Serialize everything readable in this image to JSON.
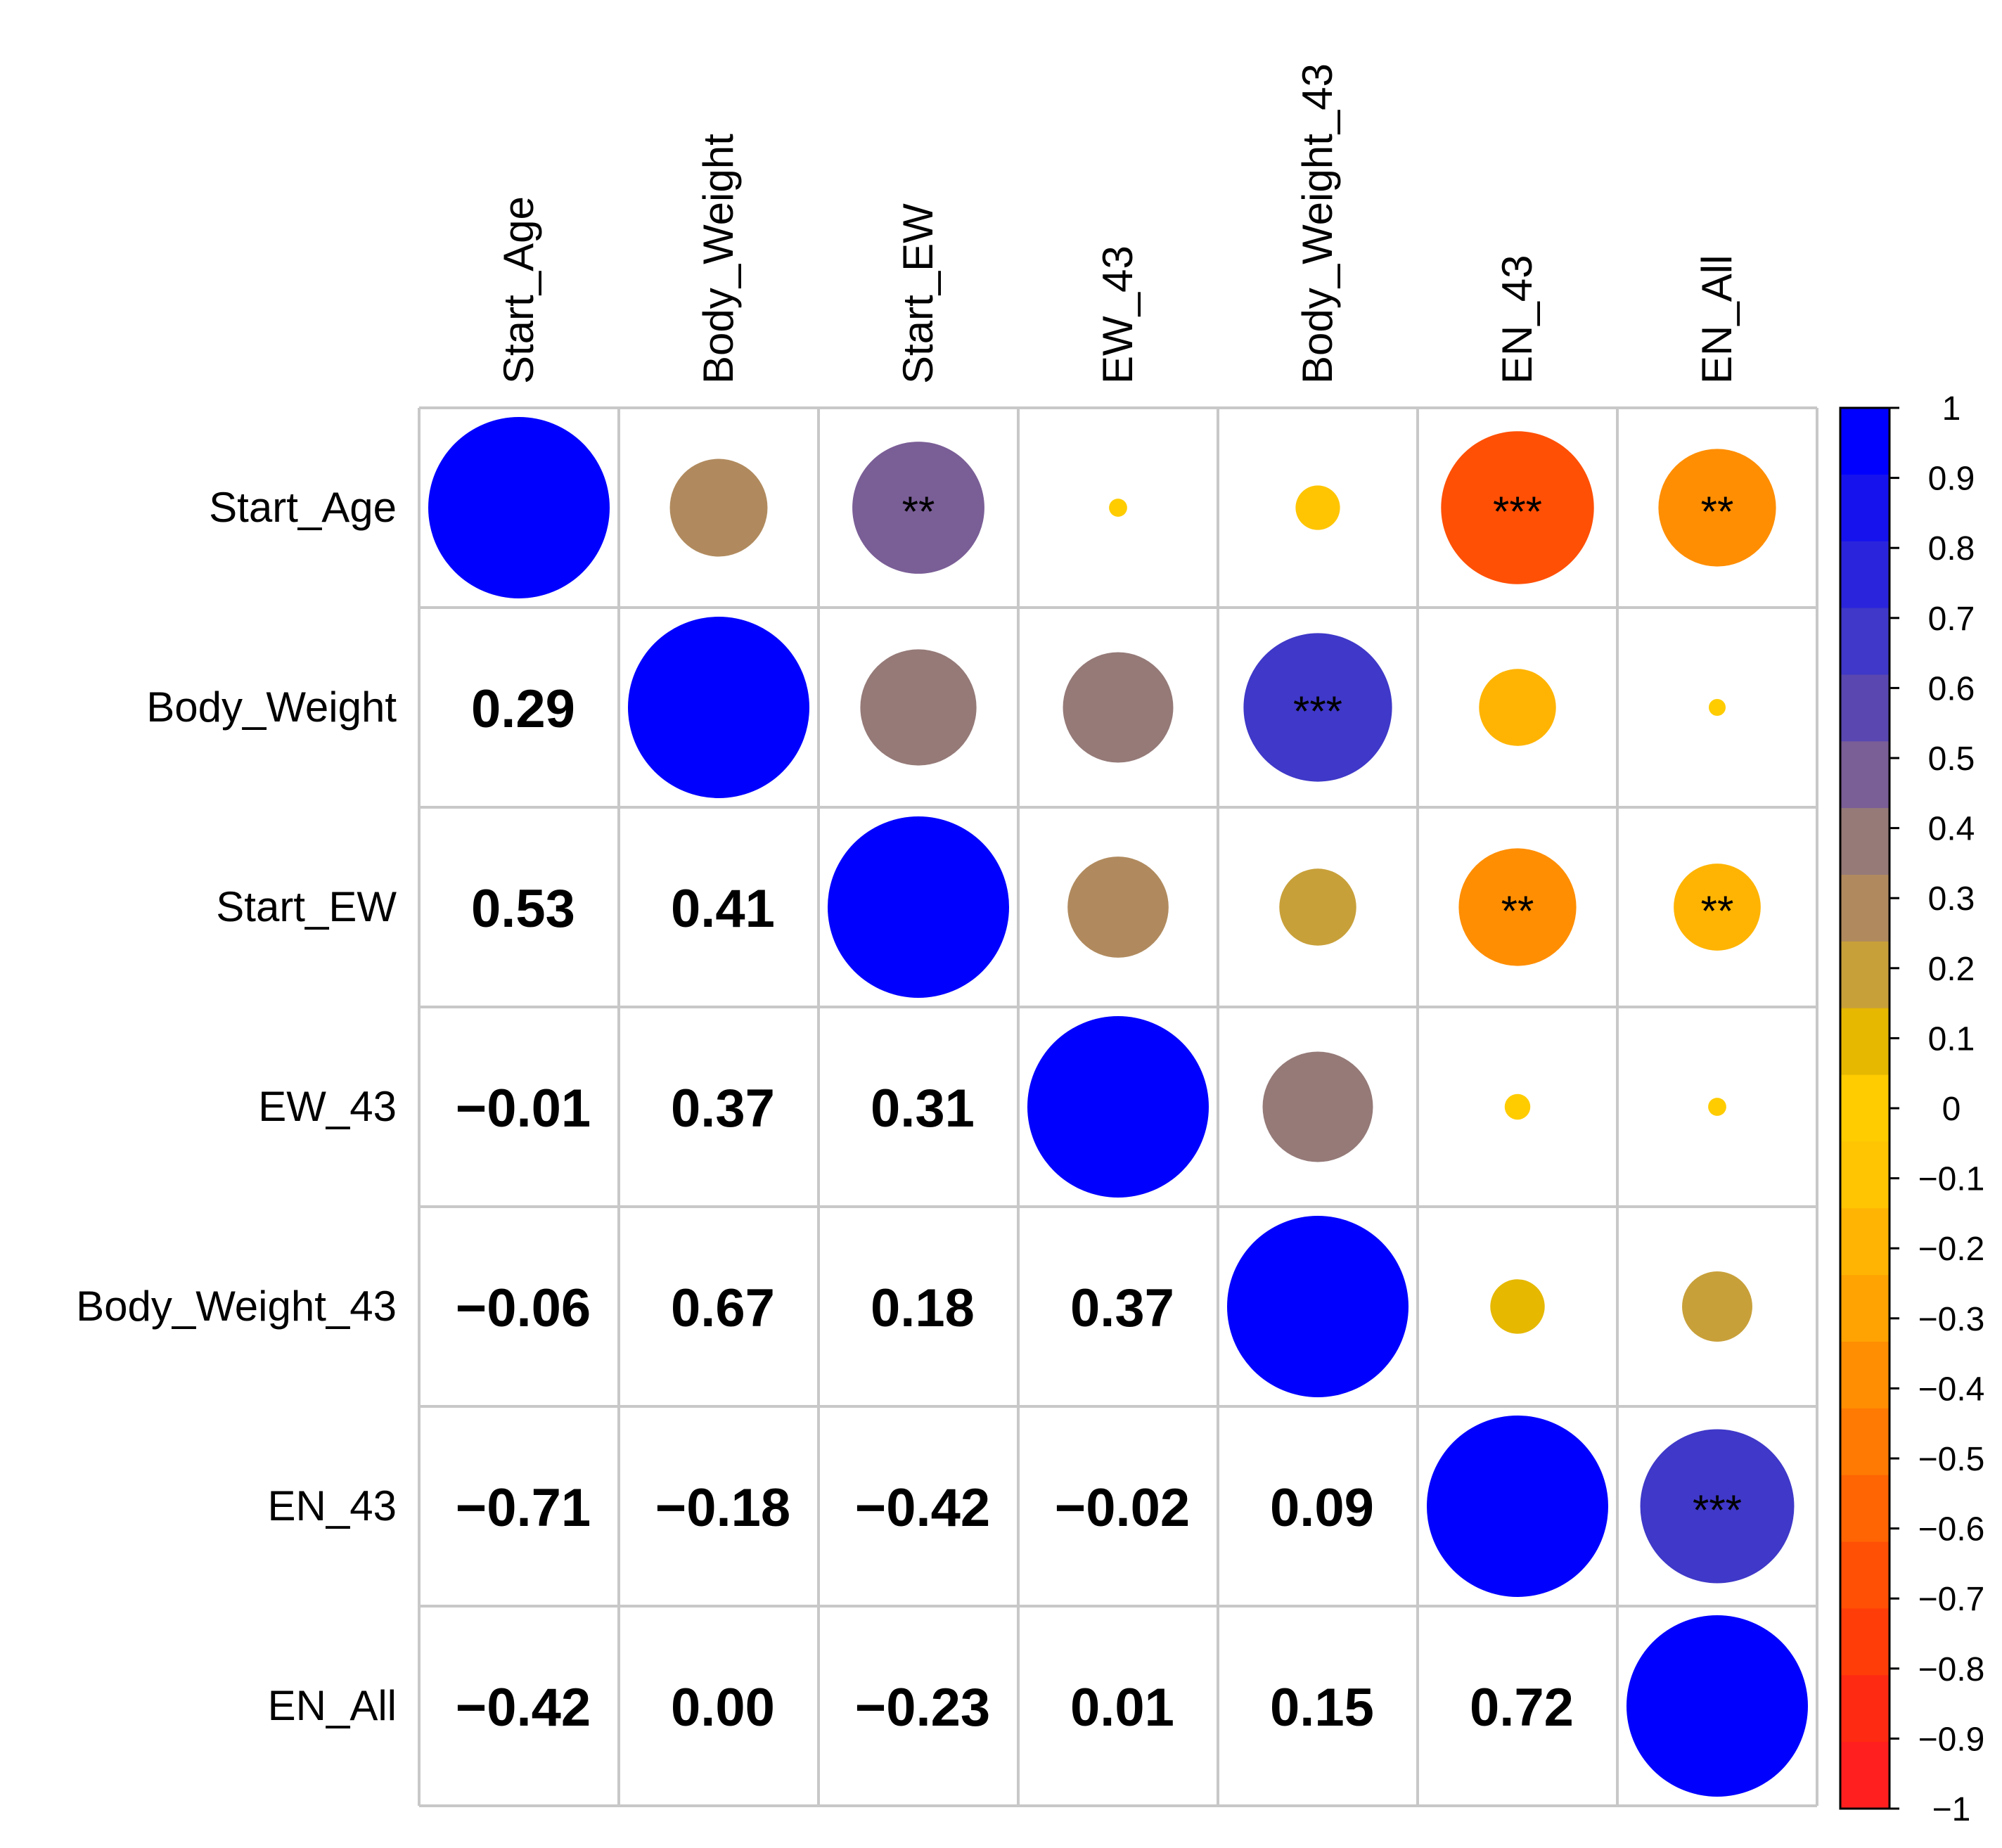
{
  "chart_data": {
    "type": "heatmap",
    "variables": [
      "Start_Age",
      "Body_Weight",
      "Start_EW",
      "EW_43",
      "Body_Weight_43",
      "EN_43",
      "EN_All"
    ],
    "correlation_matrix": [
      [
        1.0,
        0.29,
        0.53,
        -0.01,
        -0.06,
        -0.71,
        -0.42
      ],
      [
        0.29,
        1.0,
        0.41,
        0.37,
        0.67,
        -0.18,
        0.0
      ],
      [
        0.53,
        0.41,
        1.0,
        0.31,
        0.18,
        -0.42,
        -0.23
      ],
      [
        -0.01,
        0.37,
        0.31,
        1.0,
        0.37,
        -0.02,
        0.01
      ],
      [
        -0.06,
        0.67,
        0.18,
        0.37,
        1.0,
        0.09,
        0.15
      ],
      [
        -0.71,
        -0.18,
        -0.42,
        -0.02,
        0.09,
        1.0,
        0.72
      ],
      [
        -0.42,
        0.0,
        -0.23,
        0.01,
        0.15,
        0.72,
        1.0
      ]
    ],
    "lower_triangle_labels": [
      [
        null,
        null,
        null,
        null,
        null,
        null,
        null
      ],
      [
        "0.29",
        null,
        null,
        null,
        null,
        null,
        null
      ],
      [
        "0.53",
        "0.41",
        null,
        null,
        null,
        null,
        null
      ],
      [
        "−0.01",
        "0.37",
        "0.31",
        null,
        null,
        null,
        null
      ],
      [
        "−0.06",
        "0.67",
        "0.18",
        "0.37",
        null,
        null,
        null
      ],
      [
        "−0.71",
        "−0.18",
        "−0.42",
        "−0.02",
        "0.09",
        null,
        null
      ],
      [
        "−0.42",
        "0.00",
        "−0.23",
        "0.01",
        "0.15",
        "0.72",
        null
      ]
    ],
    "significance": [
      [
        "",
        "",
        "**",
        "",
        "",
        "***",
        "**"
      ],
      [
        "",
        "",
        "",
        "",
        "***",
        "",
        ""
      ],
      [
        "",
        "",
        "",
        "",
        "",
        "**",
        "**"
      ],
      [
        "",
        "",
        "",
        "",
        "",
        "",
        ""
      ],
      [
        "",
        "",
        "",
        "",
        "",
        "",
        ""
      ],
      [
        "",
        "",
        "",
        "",
        "",
        "",
        "***"
      ],
      [
        "",
        "",
        "",
        "",
        "",
        "",
        ""
      ]
    ],
    "colorbar": {
      "range": [
        -1,
        1
      ],
      "tick_labels": [
        "1",
        "0.9",
        "0.8",
        "0.7",
        "0.6",
        "0.5",
        "0.4",
        "0.3",
        "0.2",
        "0.1",
        "0",
        "−0.1",
        "−0.2",
        "−0.3",
        "−0.4",
        "−0.5",
        "−0.6",
        "−0.7",
        "−0.8",
        "−0.9",
        "−1"
      ],
      "tick_values": [
        1,
        0.9,
        0.8,
        0.7,
        0.6,
        0.5,
        0.4,
        0.3,
        0.2,
        0.1,
        0,
        -0.1,
        -0.2,
        -0.3,
        -0.4,
        -0.5,
        -0.6,
        -0.7,
        -0.8,
        -0.9,
        -1
      ],
      "colors_low_to_high": [
        "#FF1F1F",
        "#FF2A12",
        "#FF3D08",
        "#FF5005",
        "#FF6503",
        "#FF7A02",
        "#FF8E02",
        "#FFA302",
        "#FFB403",
        "#FFC503",
        "#FFCC00",
        "#E6B800",
        "#C8A03A",
        "#B08A5E",
        "#957A78",
        "#7A5E96",
        "#5A48B0",
        "#3F38C8",
        "#2A24DC",
        "#1512EE",
        "#0000FF"
      ]
    },
    "upper_shape": "circle",
    "lower_display": "number"
  }
}
